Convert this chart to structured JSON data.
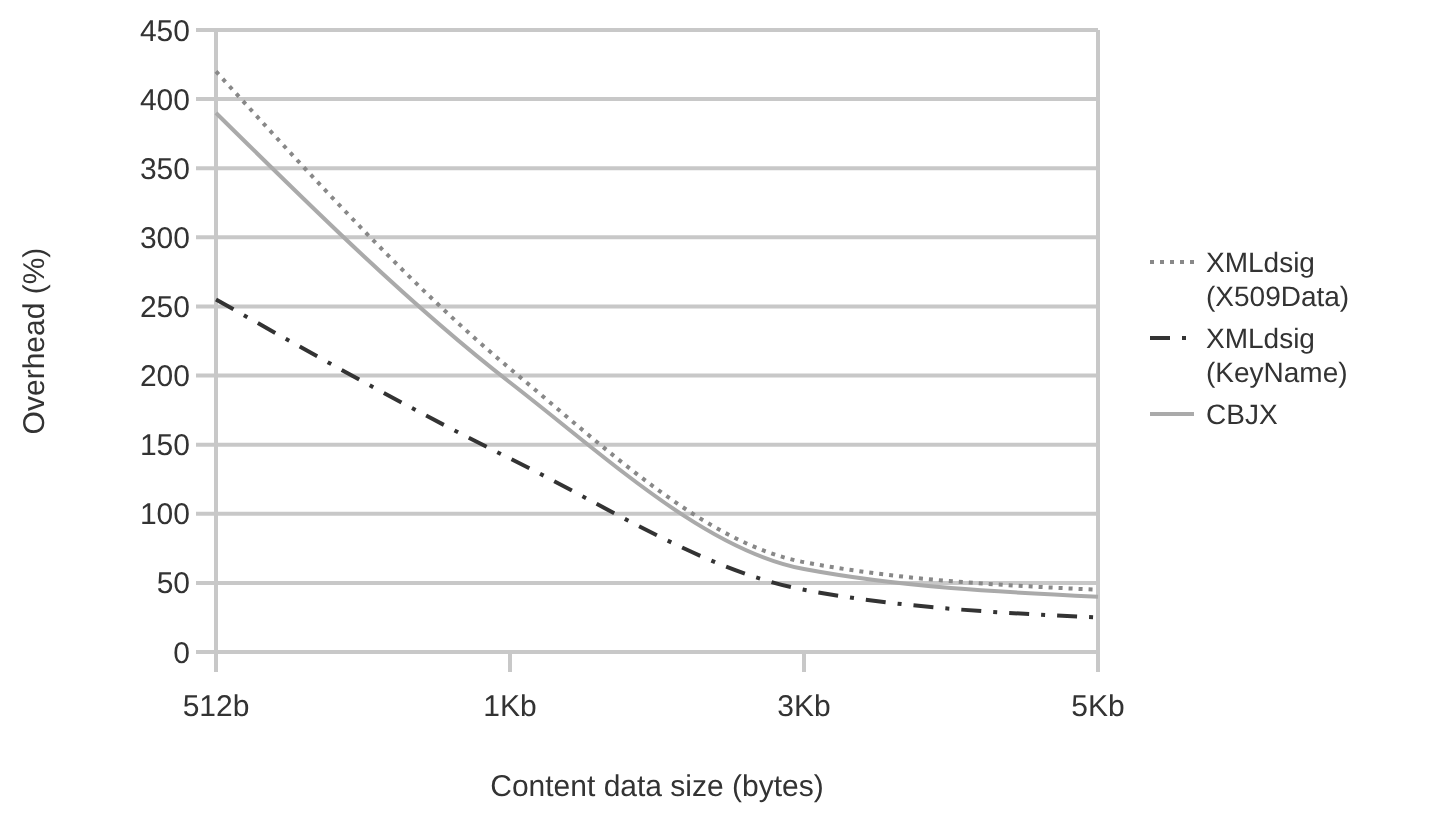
{
  "chart_data": {
    "type": "line",
    "xlabel": "Content data size (bytes)",
    "ylabel": "Overhead (%)",
    "categories": [
      "512b",
      "1Kb",
      "3Kb",
      "5Kb"
    ],
    "series": [
      {
        "name": "XMLdsig (X509Data)",
        "color": "#888888",
        "line_style": "dotted",
        "values": [
          420,
          205,
          65,
          45
        ]
      },
      {
        "name": "XMLdsig (KeyName)",
        "color": "#333333",
        "line_style": "dashed",
        "values": [
          255,
          140,
          45,
          25
        ]
      },
      {
        "name": "CBJX",
        "color": "#aaaaaa",
        "line_style": "solid",
        "values": [
          390,
          195,
          60,
          40
        ]
      }
    ],
    "ylim": [
      0,
      450
    ],
    "yticks": [
      0,
      50,
      100,
      150,
      200,
      250,
      300,
      350,
      400,
      450
    ],
    "grid": "y",
    "legend": "right"
  }
}
